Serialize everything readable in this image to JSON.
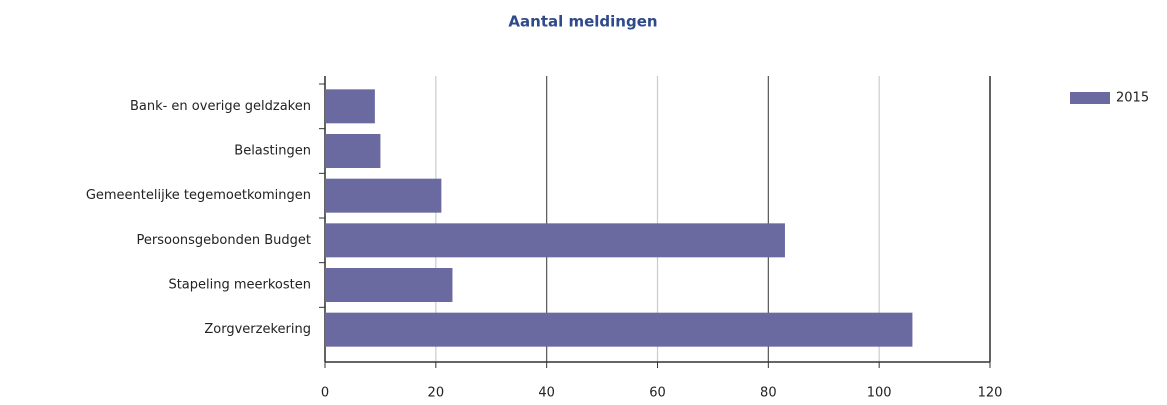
{
  "chart_data": {
    "type": "bar",
    "orientation": "horizontal",
    "title": "Aantal meldingen",
    "categories": [
      "Bank- en overige geldzaken",
      "Belastingen",
      "Gemeentelijke tegemoetkomingen",
      "Persoonsgebonden Budget",
      "Stapeling meerkosten",
      "Zorgverzekering"
    ],
    "series": [
      {
        "name": "2015",
        "color": "#6b6aa0",
        "values": [
          9,
          10,
          21,
          83,
          23,
          106
        ]
      }
    ],
    "xlim": [
      0,
      120
    ],
    "xticks": [
      0,
      20,
      40,
      60,
      80,
      100,
      120
    ],
    "grid": true,
    "legend": "top-right"
  }
}
